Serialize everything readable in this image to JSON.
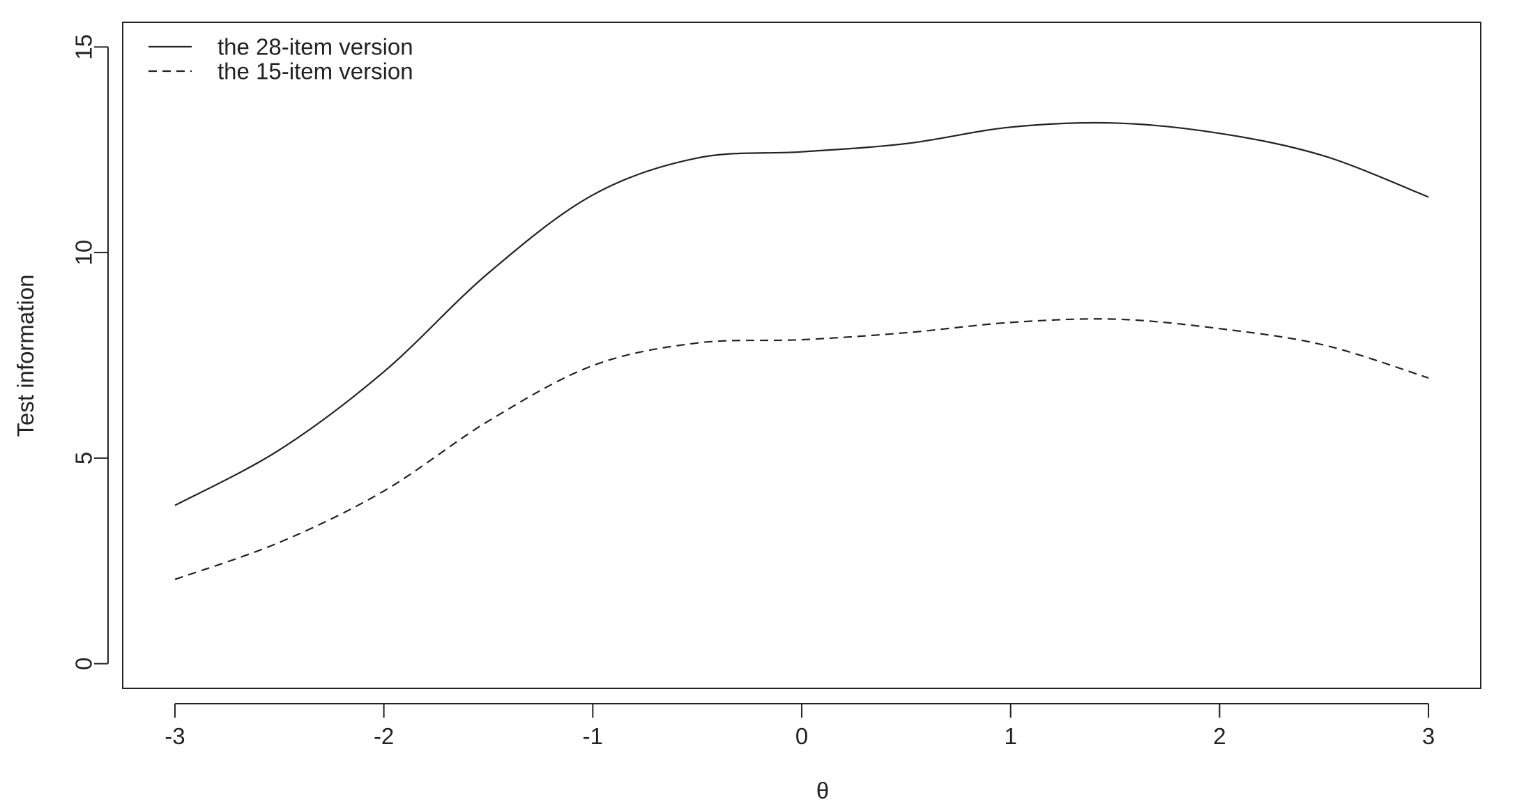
{
  "chart_data": {
    "type": "line",
    "title": "",
    "xlabel": "θ",
    "ylabel": "Test information",
    "xlim": [
      -3.25,
      3.25
    ],
    "ylim": [
      -0.6,
      15.6
    ],
    "xticks": [
      -3,
      -2,
      -1,
      0,
      1,
      2,
      3
    ],
    "yticks": [
      0,
      5,
      10,
      15
    ],
    "grid": false,
    "legend_position": "top-left",
    "x": [
      -3.0,
      -2.5,
      -2.0,
      -1.5,
      -1.0,
      -0.5,
      0.0,
      0.5,
      1.0,
      1.5,
      2.0,
      2.5,
      3.0
    ],
    "series": [
      {
        "name": "the 28-item version",
        "line_style": "solid",
        "color": "#222222",
        "values": [
          3.85,
          5.2,
          7.1,
          9.5,
          11.4,
          12.3,
          12.45,
          12.65,
          13.05,
          13.15,
          12.9,
          12.35,
          11.35
        ]
      },
      {
        "name": "the 15-item version",
        "line_style": "dashed",
        "color": "#222222",
        "values": [
          2.05,
          2.95,
          4.2,
          5.9,
          7.25,
          7.8,
          7.88,
          8.05,
          8.3,
          8.38,
          8.15,
          7.75,
          6.95
        ]
      }
    ]
  }
}
